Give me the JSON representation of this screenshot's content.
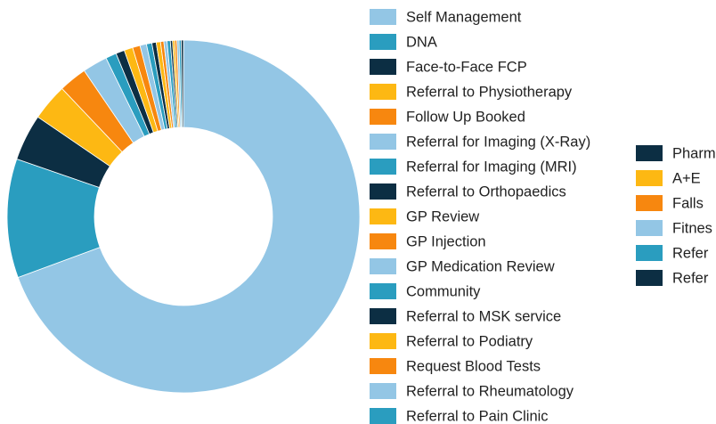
{
  "chart_data": {
    "type": "donut",
    "categories": [
      "Self Management",
      "DNA",
      "Face-to-Face FCP",
      "Referral to Physiotherapy",
      "Follow Up Booked",
      "Referral for Imaging (X-Ray)",
      "Referral for Imaging (MRI)",
      "Referral to Orthopaedics",
      "GP Review",
      "GP Injection",
      "GP Medication Review",
      "Community",
      "Referral to MSK service",
      "Referral to Podiatry",
      "Request Blood Tests",
      "Referral to Rheumatology",
      "Referral to Pain Clinic",
      "Pharm",
      "A+E",
      "Falls",
      "Fitnes",
      "Refer",
      "Refer"
    ],
    "values": [
      70,
      11,
      4.3,
      3.4,
      2.6,
      2.3,
      1,
      0.8,
      0.8,
      0.7,
      0.6,
      0.5,
      0.4,
      0.4,
      0.3,
      0.3,
      0.3,
      0.2,
      0.2,
      0.2,
      0.2,
      0.2,
      0.2
    ],
    "colors": [
      "#93c6e5",
      "#2a9dbf",
      "#0c2e43",
      "#fdb813",
      "#f7870f",
      "#93c6e5",
      "#2a9dbf",
      "#0c2e43",
      "#fdb813",
      "#f7870f",
      "#93c6e5",
      "#2a9dbf",
      "#0c2e43",
      "#fdb813",
      "#f7870f",
      "#93c6e5",
      "#2a9dbf",
      "#0c2e43",
      "#fdb813",
      "#f7870f",
      "#93c6e5",
      "#2a9dbf",
      "#0c2e43"
    ],
    "legend": "right"
  }
}
